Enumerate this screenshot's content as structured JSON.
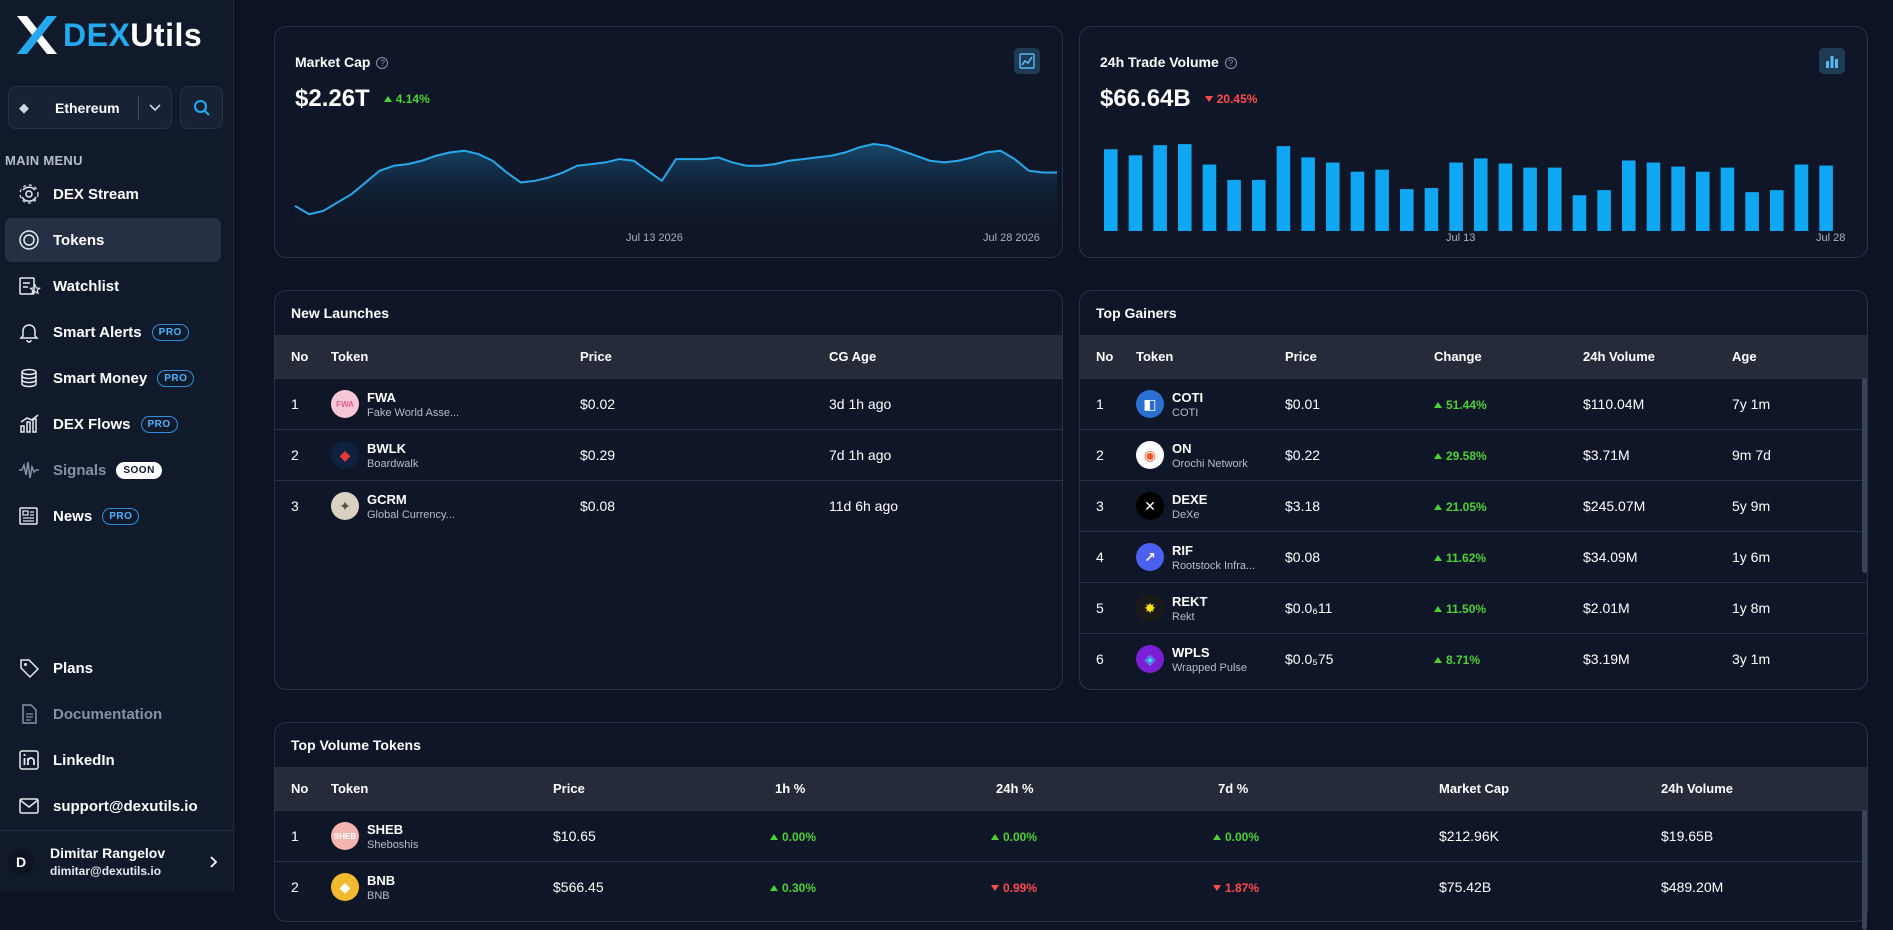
{
  "app": {
    "logo_dex": "DEX",
    "logo_utils": "Utils"
  },
  "network": {
    "label": "Ethereum"
  },
  "sidebar": {
    "menu_title": "MAIN MENU",
    "items": [
      {
        "label": "DEX Stream",
        "icon": "stream-icon",
        "badge": ""
      },
      {
        "label": "Tokens",
        "icon": "tokens-icon",
        "badge": "",
        "active": true
      },
      {
        "label": "Watchlist",
        "icon": "watchlist-icon",
        "badge": ""
      },
      {
        "label": "Smart Alerts",
        "icon": "bell-icon",
        "badge": "PRO"
      },
      {
        "label": "Smart Money",
        "icon": "coins-icon",
        "badge": "PRO"
      },
      {
        "label": "DEX Flows",
        "icon": "bar-chart-icon",
        "badge": "PRO"
      },
      {
        "label": "Signals",
        "icon": "signal-icon",
        "badge": "SOON"
      },
      {
        "label": "News",
        "icon": "news-icon",
        "badge": "PRO"
      }
    ],
    "bottom_items": [
      {
        "label": "Plans",
        "icon": "tag-icon"
      },
      {
        "label": "Documentation",
        "icon": "document-icon"
      },
      {
        "label": "LinkedIn",
        "icon": "linkedin-icon"
      },
      {
        "label": "support@dexutils.io",
        "icon": "mail-icon"
      }
    ],
    "user": {
      "initial": "D",
      "name": "Dimitar Rangelov",
      "email": "dimitar@dexutils.io"
    }
  },
  "market_cap": {
    "title": "Market Cap",
    "value": "$2.26T",
    "change": "4.14%",
    "x_labels": [
      "Jul 13 2026",
      "Jul 28 2026"
    ],
    "series": [
      55,
      50,
      52,
      57,
      62,
      69,
      76,
      79,
      80,
      82,
      85,
      87,
      88,
      86,
      82,
      75,
      69,
      70,
      72,
      75,
      79,
      80,
      81,
      83,
      82,
      76,
      70,
      83,
      83,
      83,
      84,
      81,
      79,
      79,
      80,
      82,
      83,
      84,
      85,
      87,
      90,
      92,
      91,
      88,
      85,
      82,
      81,
      82,
      84,
      87,
      88,
      83,
      76,
      75,
      75
    ]
  },
  "trade_volume": {
    "title": "24h Trade Volume",
    "value": "$66.64B",
    "change": "20.45%",
    "x_labels": [
      "Jul 13",
      "Jul 28"
    ],
    "bars": [
      80,
      74,
      84,
      85,
      65,
      50,
      50,
      83,
      72,
      67,
      58,
      60,
      41,
      42,
      67,
      71,
      66,
      62,
      62,
      35,
      40,
      69,
      67,
      63,
      58,
      62,
      38,
      40,
      65,
      64
    ]
  },
  "new_launches": {
    "title": "New Launches",
    "columns": [
      "No",
      "Token",
      "Price",
      "CG Age"
    ],
    "rows": [
      {
        "no": "1",
        "symbol": "FWA",
        "name": "Fake World Asse...",
        "price": "$0.02",
        "age": "3d 1h ago",
        "logo_color": "#f8c8d8",
        "logo_fg": "#e45f8a",
        "logo_text": "FWA"
      },
      {
        "no": "2",
        "symbol": "BWLK",
        "name": "Boardwalk",
        "price": "$0.29",
        "age": "7d 1h ago",
        "logo_color": "#0e2240",
        "logo_fg": "#e53935",
        "logo_text": "◆"
      },
      {
        "no": "3",
        "symbol": "GCRM",
        "name": "Global Currency...",
        "price": "$0.08",
        "age": "11d 6h ago",
        "logo_color": "#d9d2c3",
        "logo_fg": "#5a5243",
        "logo_text": "✦"
      }
    ]
  },
  "top_gainers": {
    "title": "Top Gainers",
    "columns": [
      "No",
      "Token",
      "Price",
      "Change",
      "24h Volume",
      "Age"
    ],
    "rows": [
      {
        "no": "1",
        "symbol": "COTI",
        "name": "COTI",
        "price": "$0.01",
        "change": "51.44%",
        "volume": "$110.04M",
        "age": "7y 1m",
        "logo_color": "#2b6fd1",
        "logo_fg": "#ffffff",
        "logo_text": "◧"
      },
      {
        "no": "2",
        "symbol": "ON",
        "name": "Orochi Network",
        "price": "$0.22",
        "change": "29.58%",
        "volume": "$3.71M",
        "age": "9m 7d",
        "logo_color": "#ffffff",
        "logo_fg": "#f05a28",
        "logo_text": "◉"
      },
      {
        "no": "3",
        "symbol": "DEXE",
        "name": "DeXe",
        "price": "$3.18",
        "change": "21.05%",
        "volume": "$245.07M",
        "age": "5y 9m",
        "logo_color": "#000000",
        "logo_fg": "#ffffff",
        "logo_text": "✕"
      },
      {
        "no": "4",
        "symbol": "RIF",
        "name": "Rootstock Infra...",
        "price": "$0.08",
        "change": "11.62%",
        "volume": "$34.09M",
        "age": "1y 6m",
        "logo_color": "#4b5ff0",
        "logo_fg": "#ffffff",
        "logo_text": "↗"
      },
      {
        "no": "5",
        "symbol": "REKT",
        "name": "Rekt",
        "price": "$0.0₆11",
        "change": "11.50%",
        "volume": "$2.01M",
        "age": "1y 8m",
        "logo_color": "#1a1a1a",
        "logo_fg": "#f4e20c",
        "logo_text": "✸"
      },
      {
        "no": "6",
        "symbol": "WPLS",
        "name": "Wrapped Pulse",
        "price": "$0.0₅75",
        "change": "8.71%",
        "volume": "$3.19M",
        "age": "3y 1m",
        "logo_color": "#7a1fd6",
        "logo_fg": "#3ad0ff",
        "logo_text": "◈"
      }
    ]
  },
  "top_volume": {
    "title": "Top Volume Tokens",
    "columns": [
      "No",
      "Token",
      "Price",
      "1h %",
      "24h %",
      "7d %",
      "Market Cap",
      "24h Volume"
    ],
    "rows": [
      {
        "no": "1",
        "symbol": "SHEB",
        "name": "Sheboshis",
        "price": "$10.65",
        "h1": "0.00%",
        "h1_dir": "up",
        "h24": "0.00%",
        "h24_dir": "up",
        "d7": "0.00%",
        "d7_dir": "up",
        "mcap": "$212.96K",
        "volume": "$19.65B",
        "logo_color": "#f4b5b0",
        "logo_fg": "#ffffff",
        "logo_text": "SHEB"
      },
      {
        "no": "2",
        "symbol": "BNB",
        "name": "BNB",
        "price": "$566.45",
        "h1": "0.30%",
        "h1_dir": "up",
        "h24": "0.99%",
        "h24_dir": "down",
        "d7": "1.87%",
        "d7_dir": "down",
        "mcap": "$75.42B",
        "volume": "$489.20M",
        "logo_color": "#f3ba2f",
        "logo_fg": "#ffffff",
        "logo_text": "◆"
      }
    ]
  }
}
